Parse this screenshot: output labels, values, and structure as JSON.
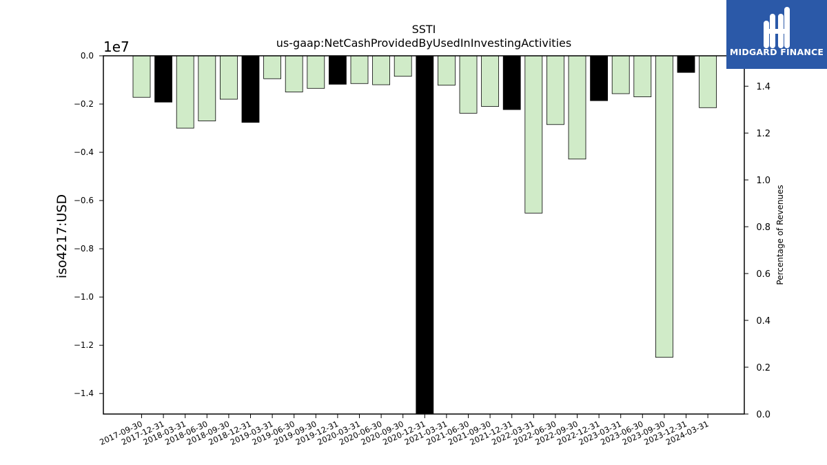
{
  "chart_data": {
    "type": "bar",
    "title": "SSTI",
    "subtitle": "us-gaap:NetCashProvidedByUsedInInvestingActivities",
    "ylabel": "iso4217:USD",
    "y_offset_label": "1e7",
    "y2label": "Percentage of Revenues",
    "ylim": [
      -14850000,
      0
    ],
    "y2lim": [
      0,
      1.53
    ],
    "yticks": [
      0.0,
      -0.2,
      -0.4,
      -0.6,
      -0.8,
      -1.0,
      -1.2,
      -1.4
    ],
    "ytick_labels": [
      "0.0",
      "−0.2",
      "−0.4",
      "−0.6",
      "−0.8",
      "−1.0",
      "−1.2",
      "−1.4"
    ],
    "y2ticks": [
      0.0,
      0.2,
      0.4,
      0.6,
      0.8,
      1.0,
      1.2,
      1.4
    ],
    "y2tick_labels": [
      "0.0",
      "0.2",
      "0.4",
      "0.6",
      "0.8",
      "1.0",
      "1.2",
      "1.4"
    ],
    "grid": false,
    "categories": [
      "2017-09-30",
      "2017-12-31",
      "2018-03-31",
      "2018-06-30",
      "2018-09-30",
      "2018-12-31",
      "2019-03-31",
      "2019-06-30",
      "2019-09-30",
      "2019-12-31",
      "2020-03-31",
      "2020-06-30",
      "2020-09-30",
      "2020-12-31",
      "2021-03-31",
      "2021-06-30",
      "2021-09-30",
      "2021-12-31",
      "2022-03-31",
      "2022-06-30",
      "2022-09-30",
      "2022-12-31",
      "2023-03-31",
      "2023-06-30",
      "2023-09-30",
      "2023-12-31",
      "2024-03-31"
    ],
    "values": [
      -1720000,
      -1920000,
      -3000000,
      -2700000,
      -1800000,
      -2760000,
      -950000,
      -1500000,
      -1350000,
      -1180000,
      -1150000,
      -1200000,
      -850000,
      -15000000,
      -1220000,
      -2380000,
      -2100000,
      -2230000,
      -6520000,
      -2850000,
      -4280000,
      -1860000,
      -1570000,
      -1700000,
      -12500000,
      -690000,
      -2150000
    ],
    "period_types": [
      "quarter",
      "annual",
      "quarter",
      "quarter",
      "quarter",
      "annual",
      "quarter",
      "quarter",
      "quarter",
      "annual",
      "quarter",
      "quarter",
      "quarter",
      "annual",
      "quarter",
      "quarter",
      "quarter",
      "annual",
      "quarter",
      "quarter",
      "quarter",
      "annual",
      "quarter",
      "quarter",
      "quarter",
      "annual",
      "quarter"
    ],
    "colors": {
      "quarter": "#d0ebc8",
      "annual": "#000000",
      "edge": "#000000"
    }
  },
  "logo": {
    "text": "MIDGARD FINANCE",
    "background": "#2b59a8"
  }
}
